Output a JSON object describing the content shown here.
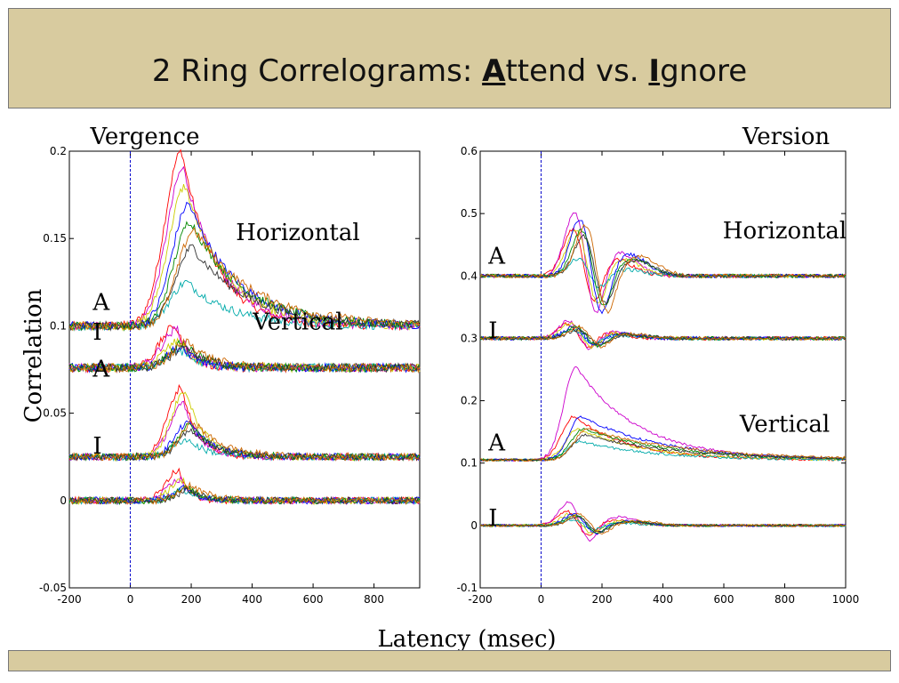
{
  "slide": {
    "title_pre": "2 Ring Correlograms: ",
    "title_A": "A",
    "title_mid": "ttend vs. ",
    "title_I": "I",
    "title_post": "gnore"
  },
  "colors": {
    "bar": "#d8cb9f",
    "zero_line": "#0000cc",
    "series": [
      "#ff0000",
      "#cc00cc",
      "#cccc00",
      "#00aaaa",
      "#0000ff",
      "#008800",
      "#333333",
      "#cc6600"
    ]
  },
  "chart_data": [
    {
      "type": "line",
      "title": "Vergence",
      "ylabel": "Correlation",
      "xlabel": "Latency (msec)",
      "xlim": [
        -200,
        950
      ],
      "ylim": [
        -0.05,
        0.2
      ],
      "xticks": [
        "-200",
        "0",
        "200",
        "400",
        "600",
        "800"
      ],
      "yticks": [
        "-0.05",
        "0",
        "0.05",
        "0.1",
        "0.15",
        "0.2"
      ],
      "zero_line_x": 0,
      "group_labels": [
        {
          "text": "Horizontal",
          "x": 550,
          "y": 0.149
        },
        {
          "text": "Vertical",
          "x": 550,
          "y": 0.098
        },
        {
          "text": "A",
          "x": -50,
          "y": 0.109
        },
        {
          "text": "I",
          "x": -50,
          "y": 0.092
        },
        {
          "text": "A",
          "x": -50,
          "y": 0.071
        },
        {
          "text": "I",
          "x": -50,
          "y": 0.027
        }
      ],
      "curves": [
        {
          "label": "A",
          "group": "Horizontal",
          "baseline": 0.1,
          "noise": 0.0025,
          "peak_x": 190,
          "peak_width": 55,
          "decay_end": 650,
          "amplitudes": [
            0.1,
            0.09,
            0.08,
            0.025,
            0.07,
            0.06,
            0.045,
            0.055
          ]
        },
        {
          "label": "I",
          "group": "Horizontal",
          "baseline": 0.076,
          "noise": 0.0025,
          "peak_x": 170,
          "peak_width": 50,
          "decay_end": 350,
          "amplitudes": [
            0.024,
            0.022,
            0.015,
            0.01,
            0.012,
            0.014,
            0.012,
            0.015
          ]
        },
        {
          "label": "A",
          "group": "Vertical",
          "baseline": 0.025,
          "noise": 0.002,
          "peak_x": 190,
          "peak_width": 45,
          "decay_end": 400,
          "amplitudes": [
            0.04,
            0.03,
            0.038,
            0.01,
            0.02,
            0.018,
            0.015,
            0.02
          ]
        },
        {
          "label": "I",
          "group": "Vertical",
          "baseline": 0.0,
          "noise": 0.002,
          "peak_x": 180,
          "peak_width": 40,
          "decay_end": 320,
          "amplitudes": [
            0.017,
            0.012,
            0.012,
            0.006,
            0.008,
            0.007,
            0.006,
            0.009
          ]
        }
      ]
    },
    {
      "type": "line",
      "title": "Version",
      "ylabel": "",
      "xlabel": "Latency (msec)",
      "xlim": [
        -200,
        1000
      ],
      "ylim": [
        -0.1,
        0.6
      ],
      "xticks": [
        "-200",
        "0",
        "200",
        "400",
        "600",
        "800",
        "1000"
      ],
      "yticks": [
        "-0.1",
        "0",
        "0.1",
        "0.2",
        "0.3",
        "0.4",
        "0.5",
        "0.6"
      ],
      "zero_line_x": 0,
      "group_labels": [
        {
          "text": "Horizontal",
          "x": 800,
          "y": 0.46
        },
        {
          "text": "Vertical",
          "x": 800,
          "y": 0.15
        },
        {
          "text": "A",
          "x": -100,
          "y": 0.42
        },
        {
          "text": "I",
          "x": -100,
          "y": 0.3
        },
        {
          "text": "A",
          "x": -100,
          "y": 0.12
        },
        {
          "text": "I",
          "x": -100,
          "y": 0.0
        }
      ],
      "curves": [
        {
          "label": "A",
          "group": "Horizontal",
          "baseline": 0.4,
          "noise": 0.003,
          "biphasic": true,
          "pos_x": 130,
          "neg_x": 190,
          "pos2_x": 280,
          "amplitudes": [
            0.08,
            0.11,
            0.08,
            0.03,
            0.1,
            0.08,
            0.07,
            0.09
          ]
        },
        {
          "label": "I",
          "group": "Horizontal",
          "baseline": 0.3,
          "noise": 0.003,
          "biphasic": true,
          "pos_x": 110,
          "neg_x": 170,
          "pos2_x": 260,
          "amplitudes": [
            0.025,
            0.03,
            0.025,
            0.015,
            0.02,
            0.02,
            0.015,
            0.02
          ]
        },
        {
          "label": "A",
          "group": "Vertical",
          "baseline": 0.105,
          "noise": 0.002,
          "peak_x": 130,
          "peak_width": 40,
          "decay_end": 900,
          "amplitudes": [
            0.07,
            0.15,
            0.05,
            0.03,
            0.07,
            0.05,
            0.04,
            0.05
          ]
        },
        {
          "label": "I",
          "group": "Vertical",
          "baseline": 0.0,
          "noise": 0.002,
          "biphasic": true,
          "pos_x": 110,
          "neg_x": 170,
          "pos2_x": 280,
          "amplitudes": [
            0.025,
            0.04,
            0.02,
            0.01,
            0.02,
            0.018,
            0.015,
            0.02
          ]
        }
      ]
    }
  ]
}
